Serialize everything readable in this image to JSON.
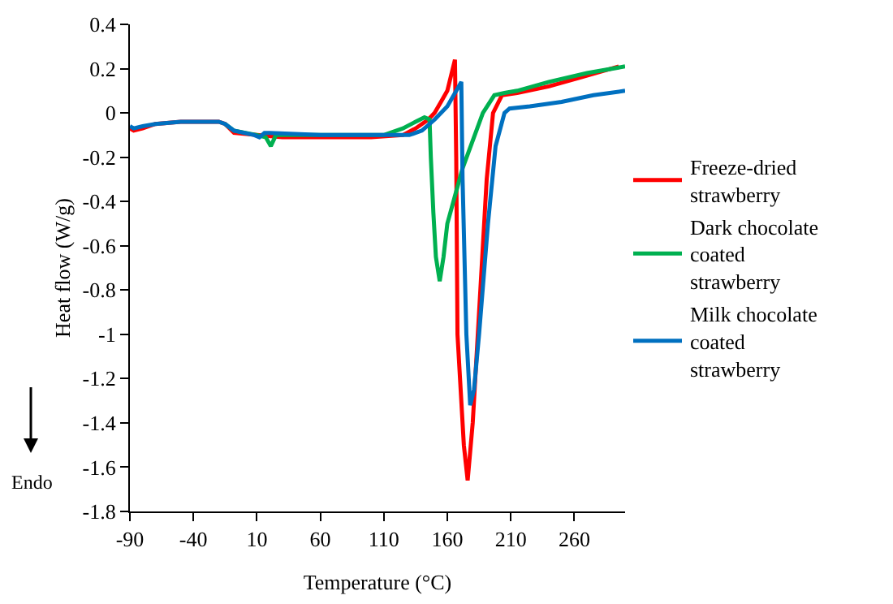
{
  "chart_data": {
    "type": "line",
    "xlabel": "Temperature (°C)",
    "ylabel": "Heat flow (W/g)",
    "xlim": [
      -90,
      300
    ],
    "xticks": [
      -90,
      -40,
      10,
      60,
      110,
      160,
      210,
      260
    ],
    "ylim": [
      -1.8,
      0.4
    ],
    "yticks": [
      -1.8,
      -1.6,
      -1.4,
      -1.2,
      -1,
      -0.8,
      -0.6,
      -0.4,
      -0.2,
      0,
      0.2,
      0.4
    ],
    "legend": "right",
    "marker": "none",
    "line_style": "solid",
    "annotations": [
      "Endo"
    ],
    "series": [
      {
        "name": "Freeze-dried strawberry",
        "color": "#ff0000",
        "x": [
          -90,
          -87,
          -80,
          -70,
          -50,
          -20,
          -15,
          -8,
          10,
          30,
          60,
          100,
          125,
          135,
          145,
          150,
          155,
          160,
          166,
          167,
          168,
          173,
          176,
          180,
          186,
          191,
          196,
          203,
          215,
          240,
          265,
          295
        ],
        "values": [
          -0.07,
          -0.08,
          -0.07,
          -0.05,
          -0.04,
          -0.04,
          -0.05,
          -0.09,
          -0.1,
          -0.11,
          -0.11,
          -0.11,
          -0.1,
          -0.07,
          -0.03,
          0.0,
          0.05,
          0.1,
          0.24,
          -0.2,
          -1.0,
          -1.5,
          -1.66,
          -1.4,
          -0.8,
          -0.3,
          0.0,
          0.08,
          0.09,
          0.12,
          0.16,
          0.21
        ]
      },
      {
        "name": "Dark chocolate coated strawberry",
        "color": "#00b050",
        "x": [
          -15,
          -8,
          10,
          17,
          21,
          25,
          30,
          60,
          110,
          125,
          135,
          142,
          146,
          147,
          149,
          151,
          154,
          157,
          160,
          172,
          188,
          197,
          205,
          215,
          240,
          270,
          300
        ],
        "values": [
          -0.05,
          -0.08,
          -0.1,
          -0.11,
          -0.15,
          -0.1,
          -0.1,
          -0.1,
          -0.1,
          -0.07,
          -0.04,
          -0.02,
          -0.03,
          -0.2,
          -0.45,
          -0.65,
          -0.76,
          -0.65,
          -0.5,
          -0.25,
          0.0,
          0.08,
          0.09,
          0.1,
          0.14,
          0.18,
          0.21
        ]
      },
      {
        "name": "Milk chocolate coated strawberry",
        "color": "#0070c0",
        "x": [
          -90,
          -87,
          -80,
          -70,
          -50,
          -20,
          -15,
          -8,
          8,
          12,
          16,
          20,
          60,
          130,
          140,
          150,
          160,
          171,
          172,
          175,
          178,
          181,
          185,
          192,
          198,
          205,
          209,
          225,
          250,
          275,
          300
        ],
        "values": [
          -0.06,
          -0.07,
          -0.06,
          -0.05,
          -0.04,
          -0.04,
          -0.05,
          -0.08,
          -0.1,
          -0.11,
          -0.09,
          -0.09,
          -0.1,
          -0.1,
          -0.08,
          -0.03,
          0.03,
          0.14,
          -0.3,
          -1.0,
          -1.32,
          -1.25,
          -1.0,
          -0.5,
          -0.15,
          0.0,
          0.02,
          0.03,
          0.05,
          0.08,
          0.1
        ]
      }
    ]
  }
}
